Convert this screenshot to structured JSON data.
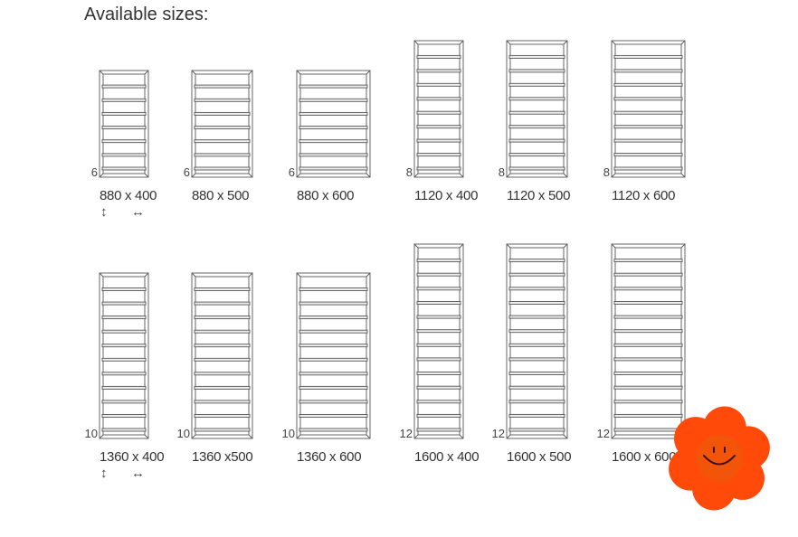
{
  "title": "Available sizes:",
  "rows": [
    {
      "count_label_side": "left",
      "items": [
        {
          "label": "880 x 400",
          "height_mm": 880,
          "width_mm": 400,
          "sections": "6"
        },
        {
          "label": "880 x 500",
          "height_mm": 880,
          "width_mm": 500,
          "sections": "6"
        },
        {
          "label": "880 x 600",
          "height_mm": 880,
          "width_mm": 600,
          "sections": "6"
        },
        {
          "label": "1120 x 400",
          "height_mm": 1120,
          "width_mm": 400,
          "sections": "8"
        },
        {
          "label": "1120 x 500",
          "height_mm": 1120,
          "width_mm": 500,
          "sections": "8"
        },
        {
          "label": "1120 x 600",
          "height_mm": 1120,
          "width_mm": 600,
          "sections": "8"
        }
      ]
    },
    {
      "count_label_side": "left",
      "items": [
        {
          "label": "1360 x 400",
          "height_mm": 1360,
          "width_mm": 400,
          "sections": "10"
        },
        {
          "label": "1360 x500",
          "height_mm": 1360,
          "width_mm": 500,
          "sections": "10"
        },
        {
          "label": "1360 x 600",
          "height_mm": 1360,
          "width_mm": 600,
          "sections": "10"
        },
        {
          "label": "1600 x 400",
          "height_mm": 1600,
          "width_mm": 400,
          "sections": "12"
        },
        {
          "label": "1600 x 500",
          "height_mm": 1600,
          "width_mm": 500,
          "sections": "12"
        },
        {
          "label": "1600 x 600",
          "height_mm": 1600,
          "width_mm": 600,
          "sections": "12"
        }
      ]
    }
  ],
  "icons": {
    "height": "vertical-arrow-icon",
    "width": "horizontal-arrow-icon",
    "height_glyph": "↕",
    "width_glyph": "↔"
  },
  "overlay": {
    "icon": "smiling-flower-icon",
    "color": "#ff4a0a"
  }
}
